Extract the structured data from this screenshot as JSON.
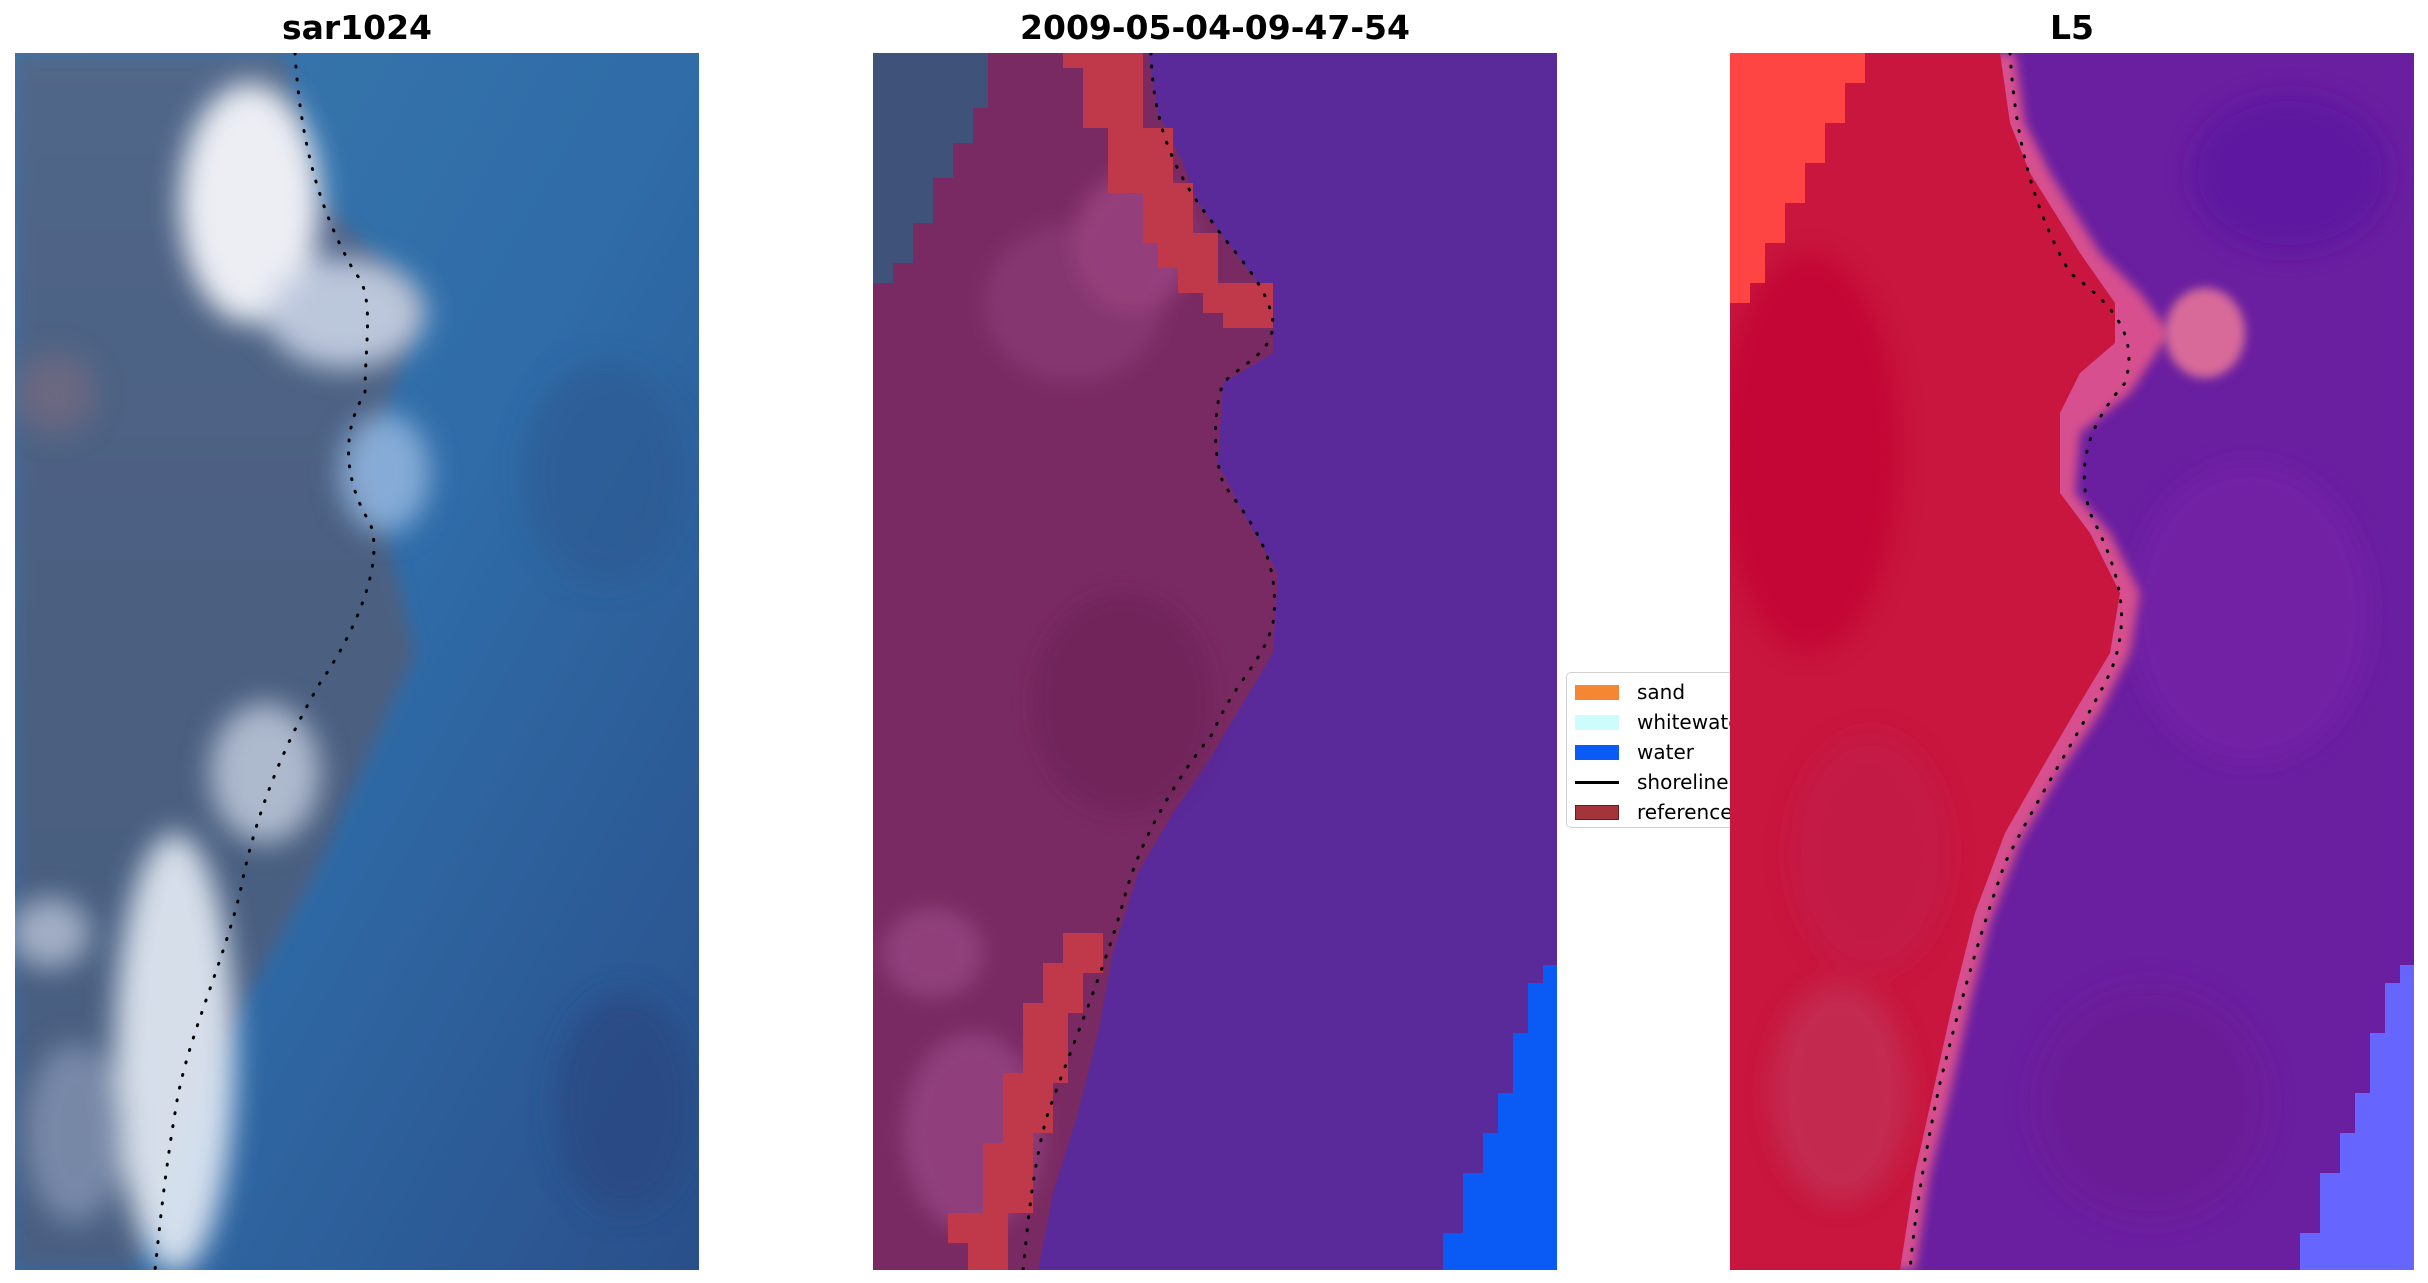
{
  "panels": [
    {
      "title": "sar1024"
    },
    {
      "title": "2009-05-04-09-47-54"
    },
    {
      "title": "L5"
    }
  ],
  "legend": {
    "items": [
      {
        "label": "sand",
        "color": "#f58634",
        "kind": "patch"
      },
      {
        "label": "whitewater",
        "color": "#ccfcfc",
        "kind": "patch"
      },
      {
        "label": "water",
        "color": "#0a5af5",
        "kind": "patch"
      },
      {
        "label": "shoreline",
        "color": "#000000",
        "kind": "line"
      },
      {
        "label": "reference",
        "color": "#a3343a",
        "kind": "patch"
      }
    ]
  },
  "colors": {
    "sar_land": "#4a5f80",
    "sar_sea": "#2e6aa6",
    "sar_surf": "#e8eef5",
    "classified_land": "#7a2a62",
    "classified_sea": "#5a2a9a",
    "classified_reference": "#c0394a",
    "classified_water": "#0a5af5",
    "l5_land": "#c8163e",
    "l5_sea": "#6a1fa0",
    "l5_sand": "#ff4a4a",
    "l5_water": "#6666ff"
  }
}
